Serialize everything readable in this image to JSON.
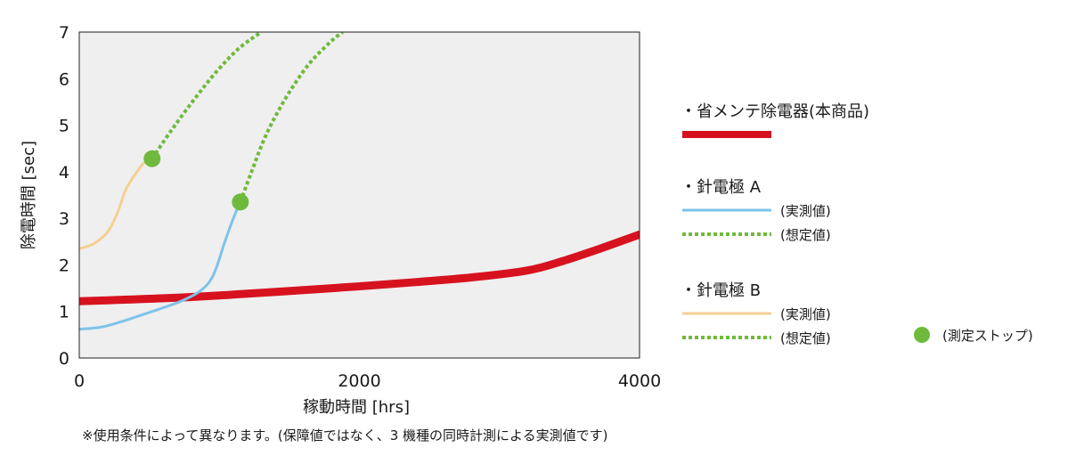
{
  "chart_data": {
    "type": "line",
    "xlabel": "稼動時間 [hrs]",
    "ylabel": "除電時間 [sec]",
    "xlim": [
      0,
      4000
    ],
    "ylim": [
      0,
      7
    ],
    "x_ticks": [
      "0",
      "2000",
      "4000"
    ],
    "y_ticks": [
      "0",
      "1",
      "2",
      "3",
      "4",
      "5",
      "6",
      "7"
    ],
    "grid": false,
    "legend_position": "right",
    "series": [
      {
        "name": "省メンテ除電器(本商品)",
        "style": "measured",
        "color": "#d7121f",
        "points": [
          [
            0,
            1.22
          ],
          [
            400,
            1.26
          ],
          [
            800,
            1.31
          ],
          [
            1200,
            1.38
          ],
          [
            1600,
            1.46
          ],
          [
            2000,
            1.54
          ],
          [
            2400,
            1.63
          ],
          [
            2800,
            1.73
          ],
          [
            3200,
            1.88
          ],
          [
            3450,
            2.08
          ],
          [
            3700,
            2.33
          ],
          [
            4000,
            2.65
          ]
        ]
      },
      {
        "name": "針電極 A (実測値)",
        "style": "measured",
        "color": "#7ec3ea",
        "points": [
          [
            0,
            0.62
          ],
          [
            150,
            0.66
          ],
          [
            300,
            0.78
          ],
          [
            450,
            0.93
          ],
          [
            600,
            1.08
          ],
          [
            750,
            1.25
          ],
          [
            880,
            1.48
          ],
          [
            960,
            1.8
          ],
          [
            1040,
            2.5
          ],
          [
            1100,
            3.0
          ],
          [
            1150,
            3.35
          ]
        ]
      },
      {
        "name": "針電極 A (想定値)",
        "style": "estimated",
        "color": "#6fba3c",
        "points": [
          [
            1150,
            3.35
          ],
          [
            1230,
            4.0
          ],
          [
            1320,
            4.7
          ],
          [
            1420,
            5.3
          ],
          [
            1530,
            5.85
          ],
          [
            1650,
            6.35
          ],
          [
            1790,
            6.78
          ],
          [
            1880,
            7.0
          ]
        ]
      },
      {
        "name": "針電極 B (実測値)",
        "style": "measured",
        "color": "#f7cf92",
        "points": [
          [
            0,
            2.35
          ],
          [
            100,
            2.45
          ],
          [
            200,
            2.7
          ],
          [
            270,
            3.1
          ],
          [
            330,
            3.6
          ],
          [
            400,
            3.95
          ],
          [
            460,
            4.18
          ],
          [
            520,
            4.28
          ]
        ]
      },
      {
        "name": "針電極 B (想定値)",
        "style": "estimated",
        "color": "#6fba3c",
        "points": [
          [
            520,
            4.28
          ],
          [
            660,
            4.9
          ],
          [
            820,
            5.55
          ],
          [
            980,
            6.15
          ],
          [
            1140,
            6.65
          ],
          [
            1300,
            7.0
          ]
        ]
      }
    ],
    "stop_points": [
      [
        520,
        4.28
      ],
      [
        1150,
        3.35
      ]
    ]
  },
  "legend": {
    "product_label": "・省メンテ除電器(本商品)",
    "a_label": "・針電極 A",
    "a_measured": "(実測値)",
    "a_estimated": "(想定値)",
    "b_label": "・針電極 B",
    "b_measured": "(実測値)",
    "b_estimated": "(想定値)",
    "stop_label": "(測定ストップ)",
    "colors": {
      "product": "#d7121f",
      "a_measured": "#7ec3ea",
      "estimated": "#6fba3c",
      "b_measured": "#f7cf92",
      "stop": "#6fba3c"
    }
  },
  "note": "※使用条件によって異なります。(保障値ではなく、3 機種の同時計測による実測値です)"
}
